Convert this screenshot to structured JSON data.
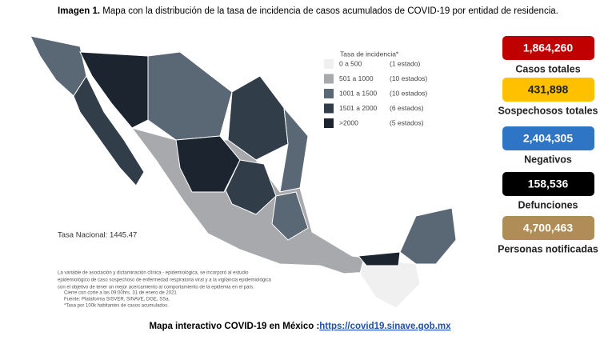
{
  "header": {
    "label": "Imagen 1.",
    "caption": "Mapa con la distribución de la tasa de incidencia de casos acumulados de COVID-19 por entidad de residencia."
  },
  "legend": {
    "title": "Tasa de incidencia*",
    "items": [
      {
        "range": "0 a 500",
        "count": "(1 estado)",
        "color": "#f0f0f0"
      },
      {
        "range": "501 a 1000",
        "count": "(10 estados)",
        "color": "#a7a9ac"
      },
      {
        "range": "1001 a 1500",
        "count": "(10 estados)",
        "color": "#5a6775"
      },
      {
        "range": "1501 a 2000",
        "count": "(6 estados)",
        "color": "#323d4a"
      },
      {
        "range": ">2000",
        "count": "(5 estados)",
        "color": "#1c2430"
      }
    ]
  },
  "national_rate": "Tasa Nacional: 1445.47",
  "notes": [
    "La variable de asociación y dictaminación clínica - epidemiológica, se incorporó al estudio",
    "epidemiológico de caso sospechoso de enfermedad respiratoria viral y a la vigilancia epidemiológica",
    "con el objetivo de tener un mejor acercamiento al comportamiento de la epidemia en el país.",
    "Cierre con corte a las 09:00hrs, 31 de enero de 2021",
    "Fuente: Plataforma SISVER, SINAVE, DGE, SSa.",
    "*Tasa por 100k habitantes de casos acumulados."
  ],
  "stats": [
    {
      "value": "1,864,260",
      "label": "Casos totales",
      "color": "#c00000"
    },
    {
      "value": "431,898",
      "label": "Sospechosos totales",
      "color": "#ffc000"
    },
    {
      "value": "2,404,305",
      "label": "Negativos",
      "color": "#2e75c6"
    },
    {
      "value": "158,536",
      "label": "Defunciones",
      "color": "#000000"
    },
    {
      "value": "4,700,463",
      "label": "Personas notificadas",
      "color": "#b08d57"
    }
  ],
  "footer": {
    "text": "Mapa interactivo COVID-19 en México :",
    "link": "https://covid19.sinave.gob.mx"
  }
}
